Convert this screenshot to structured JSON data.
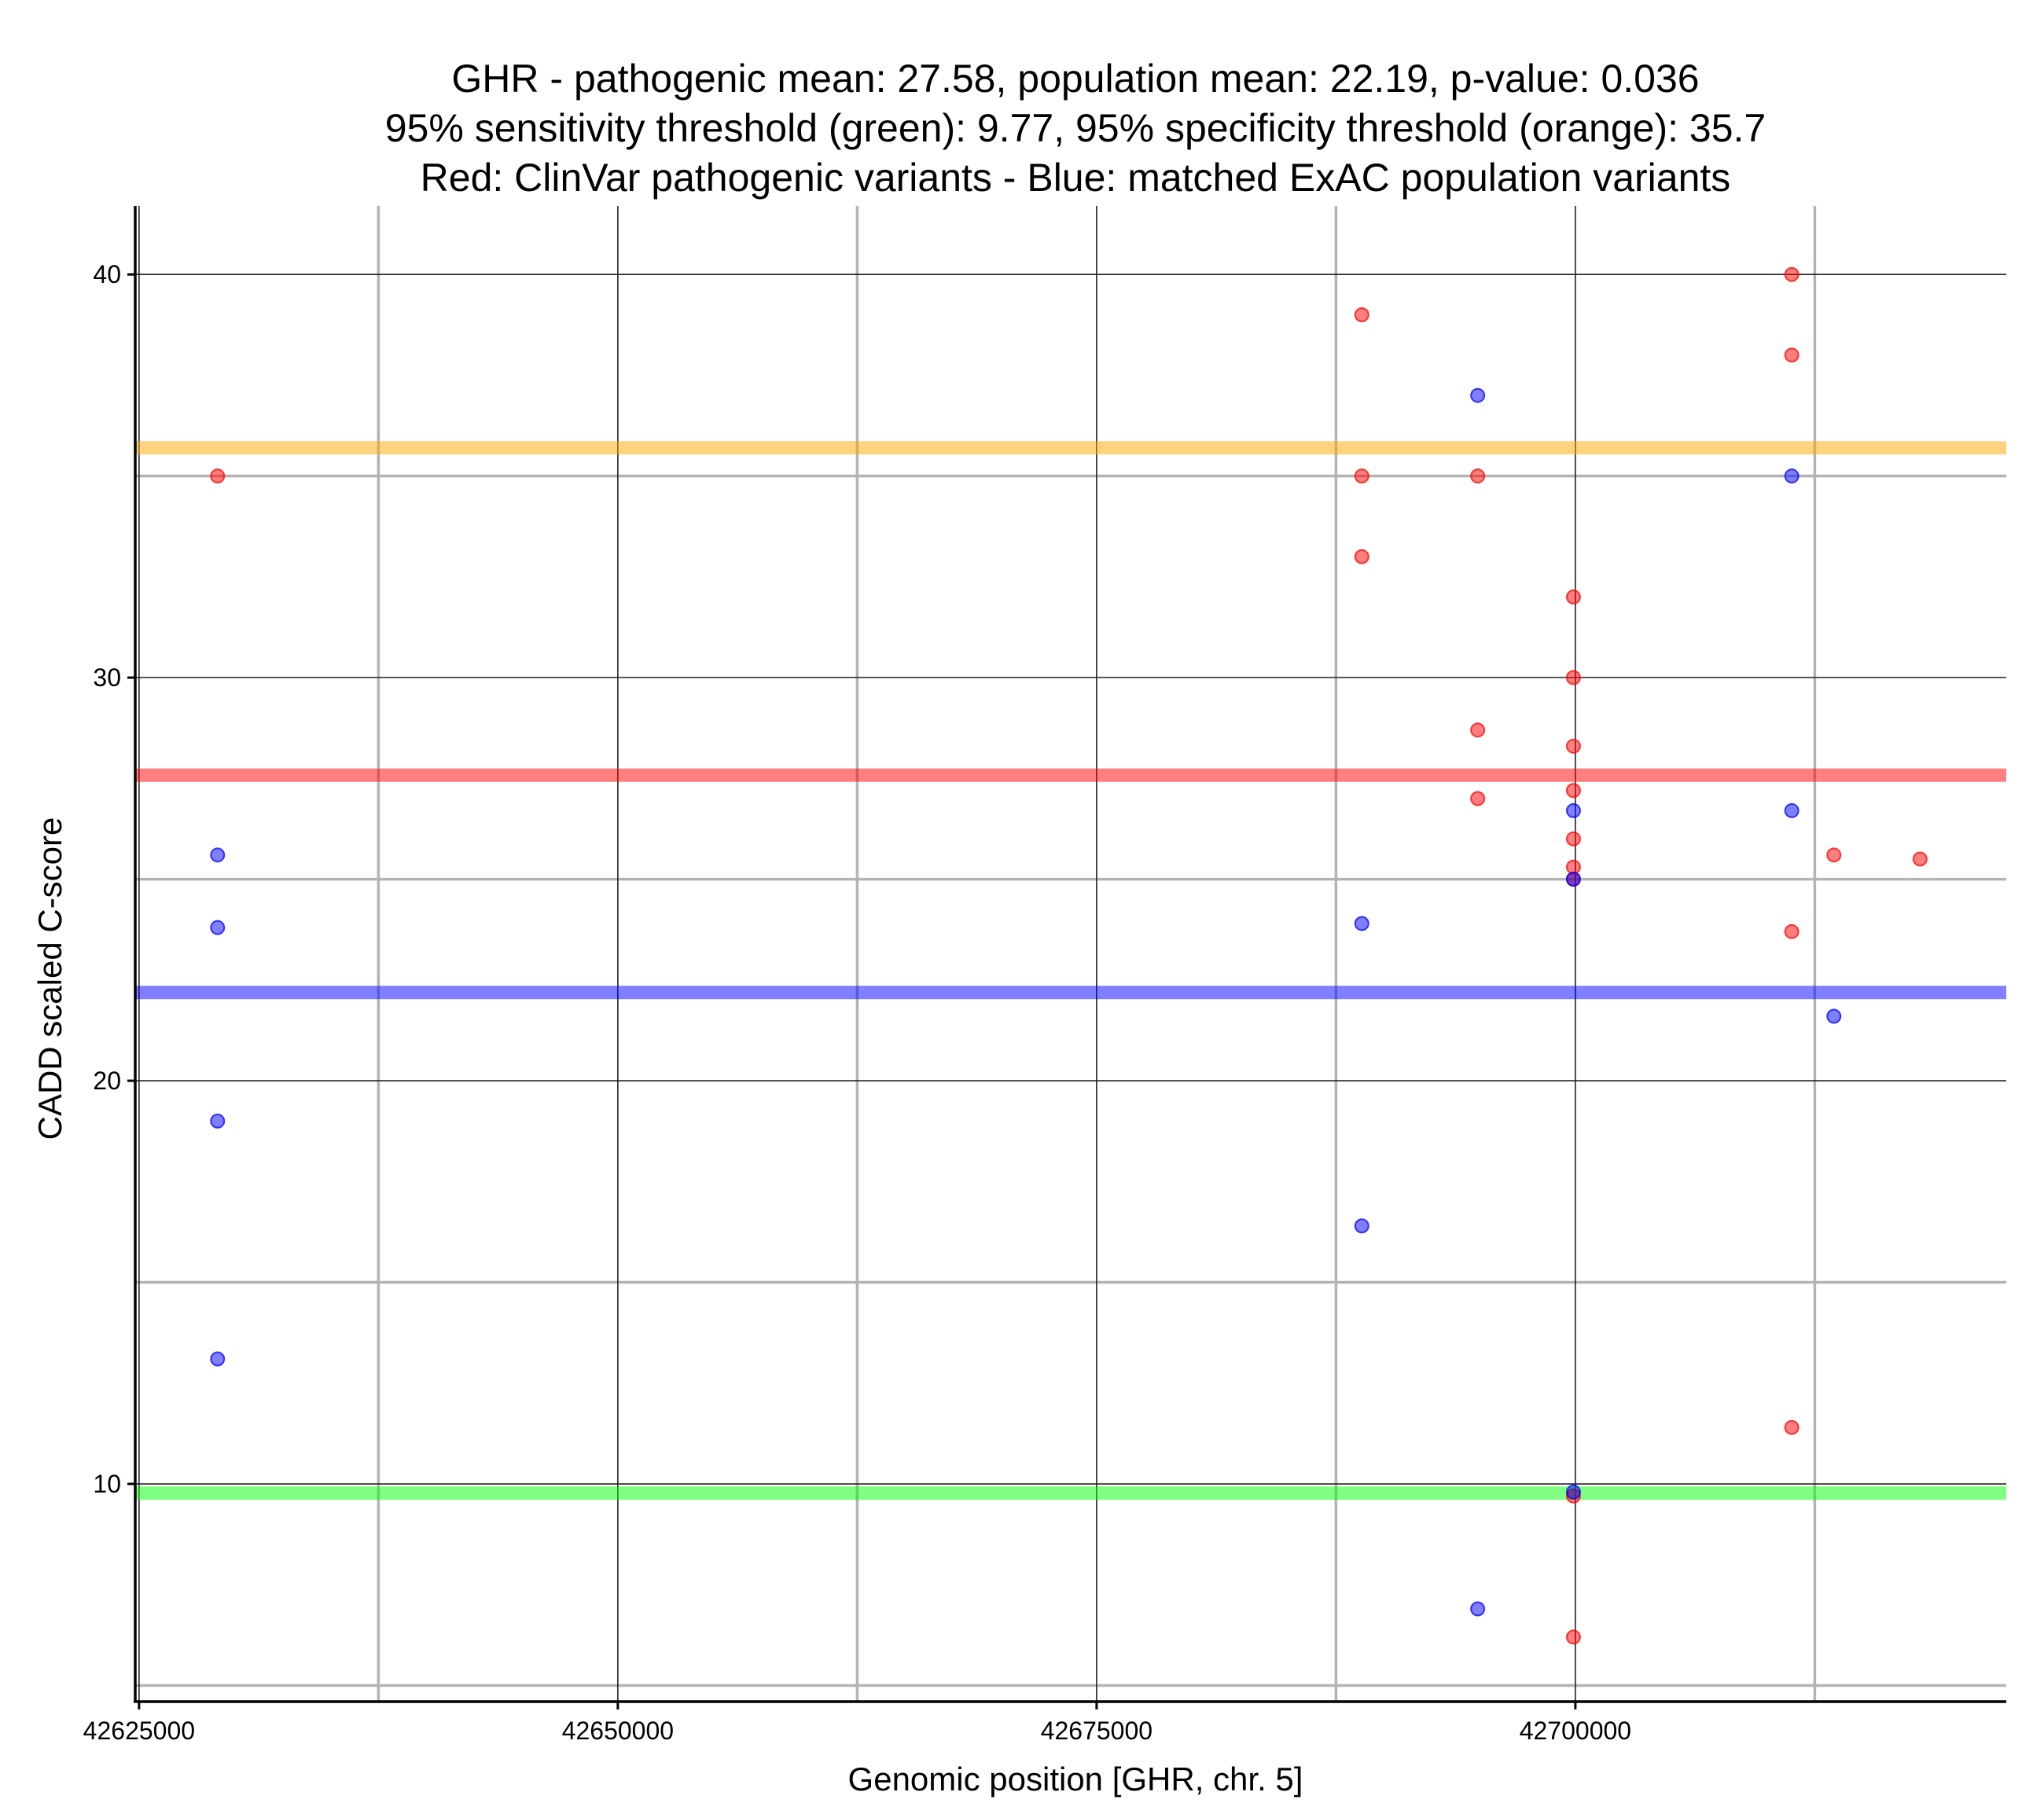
{
  "chart_data": {
    "type": "scatter",
    "title_lines": [
      "GHR - pathogenic mean: 27.58, population mean: 22.19, p-value: 0.036",
      "95% sensitivity threshold (green): 9.77, 95% specificity threshold (orange): 35.7",
      "Red: ClinVar pathogenic variants - Blue: matched ExAC population variants"
    ],
    "xlabel": "Genomic position [GHR, chr. 5]",
    "ylabel": "CADD scaled C-score",
    "xlim": [
      42624800,
      42722500
    ],
    "ylim": [
      4.6,
      41.7
    ],
    "x_ticks": [
      42625000,
      42650000,
      42675000,
      42700000
    ],
    "x_tick_labels": [
      "42625000",
      "42650000",
      "42675000",
      "42700000"
    ],
    "y_ticks": [
      10,
      20,
      30,
      40
    ],
    "y_tick_labels": [
      "10",
      "20",
      "30",
      "40"
    ],
    "x_minor_grid": [
      42637500,
      42662500,
      42687500,
      42712500
    ],
    "y_minor_grid": [
      5,
      15,
      25,
      35
    ],
    "grid": true,
    "reference_lines": [
      {
        "name": "95% specificity threshold",
        "y": 35.7,
        "color": "#ffa500"
      },
      {
        "name": "pathogenic mean",
        "y": 27.58,
        "color": "#ff0000"
      },
      {
        "name": "population mean",
        "y": 22.19,
        "color": "#0000ff"
      },
      {
        "name": "95% sensitivity threshold",
        "y": 9.77,
        "color": "#00ff00"
      }
    ],
    "series": [
      {
        "name": "ClinVar pathogenic variants",
        "color": "#ff0000",
        "points": [
          {
            "x": 42629100,
            "y": 35
          },
          {
            "x": 42688850,
            "y": 39
          },
          {
            "x": 42688850,
            "y": 35
          },
          {
            "x": 42688850,
            "y": 33
          },
          {
            "x": 42694900,
            "y": 35
          },
          {
            "x": 42694900,
            "y": 28.7
          },
          {
            "x": 42694900,
            "y": 27
          },
          {
            "x": 42699900,
            "y": 32
          },
          {
            "x": 42699900,
            "y": 30
          },
          {
            "x": 42699900,
            "y": 28.3
          },
          {
            "x": 42699900,
            "y": 27.2
          },
          {
            "x": 42699900,
            "y": 26
          },
          {
            "x": 42699900,
            "y": 25.3
          },
          {
            "x": 42699900,
            "y": 25
          },
          {
            "x": 42699900,
            "y": 9.7
          },
          {
            "x": 42699900,
            "y": 6.2
          },
          {
            "x": 42711300,
            "y": 40
          },
          {
            "x": 42711300,
            "y": 38
          },
          {
            "x": 42711300,
            "y": 23.7
          },
          {
            "x": 42711300,
            "y": 11.4
          },
          {
            "x": 42713500,
            "y": 25.6
          },
          {
            "x": 42718000,
            "y": 25.5
          }
        ]
      },
      {
        "name": "matched ExAC population variants",
        "color": "#0000ff",
        "points": [
          {
            "x": 42629100,
            "y": 25.6
          },
          {
            "x": 42629100,
            "y": 23.8
          },
          {
            "x": 42629100,
            "y": 19
          },
          {
            "x": 42629100,
            "y": 13.1
          },
          {
            "x": 42688850,
            "y": 23.9
          },
          {
            "x": 42688850,
            "y": 16.4
          },
          {
            "x": 42694900,
            "y": 37
          },
          {
            "x": 42694900,
            "y": 6.9
          },
          {
            "x": 42699900,
            "y": 26.7
          },
          {
            "x": 42699900,
            "y": 25
          },
          {
            "x": 42699900,
            "y": 9.8
          },
          {
            "x": 42711300,
            "y": 35
          },
          {
            "x": 42711300,
            "y": 26.7
          },
          {
            "x": 42713500,
            "y": 21.6
          }
        ]
      }
    ]
  }
}
